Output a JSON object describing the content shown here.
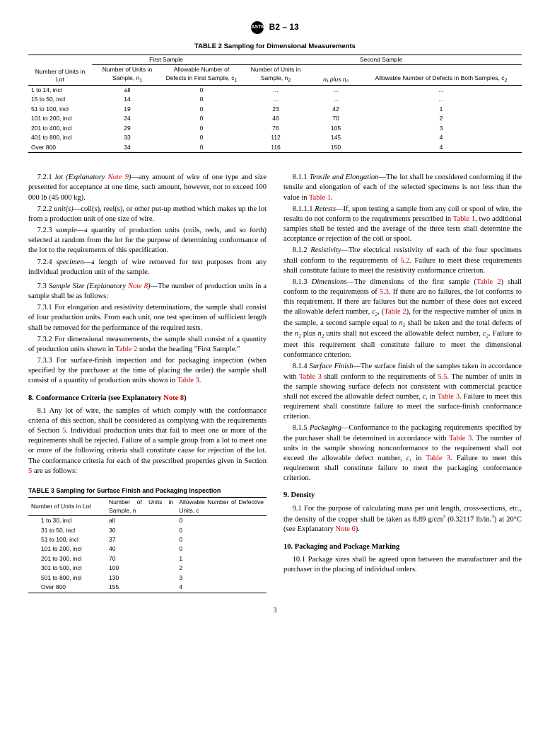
{
  "header": {
    "designation": "B2 – 13"
  },
  "table2": {
    "title": "TABLE 2 Sampling for Dimensional Measurements",
    "group1": "First Sample",
    "group2": "Second Sample",
    "cols": {
      "lot": "Number of Units in Lot",
      "n1": "Number of Units in Sample, n",
      "c1": "Allowable Number of Defects in First Sample, c",
      "n2": "Number of Units in Sample, n",
      "n1n2": "n₁ plus n₂",
      "c2": "Allowable Number of Defects in Both Samples, c"
    },
    "rows": [
      {
        "lot": "1 to 14, incl",
        "n1": "all",
        "c1": "0",
        "n2": "...",
        "n1n2": "...",
        "c2": "..."
      },
      {
        "lot": "15 to 50, incl",
        "n1": "14",
        "c1": "0",
        "n2": "...",
        "n1n2": "...",
        "c2": "..."
      },
      {
        "lot": "51 to 100, incl",
        "n1": "19",
        "c1": "0",
        "n2": "23",
        "n1n2": "42",
        "c2": "1"
      },
      {
        "lot": "101 to 200, incl",
        "n1": "24",
        "c1": "0",
        "n2": "46",
        "n1n2": "70",
        "c2": "2"
      },
      {
        "lot": "201 to 400, incl",
        "n1": "29",
        "c1": "0",
        "n2": "76",
        "n1n2": "105",
        "c2": "3"
      },
      {
        "lot": "401 to 800, incl",
        "n1": "33",
        "c1": "0",
        "n2": "112",
        "n1n2": "145",
        "c2": "4"
      },
      {
        "lot": "Over 800",
        "n1": "34",
        "c1": "0",
        "n2": "116",
        "n1n2": "150",
        "c2": "4"
      }
    ]
  },
  "body": {
    "p721a": "7.2.1 ",
    "p721b": "lot (Explanatory ",
    "p721c": "Note 9",
    "p721d": ")",
    "p721e": "—any amount of wire of one type and size presented for acceptance at one time, such amount, however, not to exceed 100 000 lb (45 000 kg).",
    "p722a": "7.2.2 ",
    "p722b": "unit(s)",
    "p722c": "—coil(s), reel(s), or other put-up method which makes up the lot from a production unit of one size of wire.",
    "p723a": "7.2.3 ",
    "p723b": "sample",
    "p723c": "—a quantity of production units (coils, reels, and so forth) selected at random from the lot for the purpose of determining conformance of the lot to the requirements of this specification.",
    "p724a": "7.2.4 ",
    "p724b": "specimen",
    "p724c": "—a length of wire removed for test purposes from any individual production unit of the sample.",
    "p73a": "7.3 ",
    "p73b": "Sample Size (Explanatory ",
    "p73c": "Note 8",
    "p73d": ")",
    "p73e": "—The number of production units in a sample shall be as follows:",
    "p731": "7.3.1 For elongation and resistivity determinations, the sample shall consist of four production units. From each unit, one test specimen of sufficient length shall be removed for the performance of the required tests.",
    "p732a": "7.3.2 For dimensional measurements, the sample shall consist of a quantity of production units shown in ",
    "p732b": "Table 2",
    "p732c": " under the heading \"First Sample.\"",
    "p733a": "7.3.3 For surface-finish inspection and for packaging inspection (when specified by the purchaser at the time of placing the order) the sample shall consist of a quantity of production units shown in ",
    "p733b": "Table 3",
    "p733c": ".",
    "s8title": "8.  Conformance Criteria (see Explanatory ",
    "s8titleb": "Note 8",
    "s8titlec": ")",
    "p81a": "8.1 Any lot of wire, the samples of which comply with the conformance criteria of this section, shall be considered as complying with the requirements of Section ",
    "p81b": "5",
    "p81c": ". Individual production units that fail to meet one or more of the requirements shall be rejected. Failure of a sample group from a lot to meet one or more of the following criteria shall constitute cause for rejection of the lot. The conformance criteria for each of the prescribed properties given in Section ",
    "p81d": "5",
    "p81e": " are as follows:",
    "p811a": "8.1.1 ",
    "p811b": "Tensile and Elongation",
    "p811c": "—The lot shall be considered conforming if the tensile and elongation of each of the selected specimens is not less than the value in ",
    "p811d": "Table 1",
    "p811e": ".",
    "p8111a": "8.1.1.1 ",
    "p8111b": "Retests",
    "p8111c": "—If, upon testing a sample from any coil or spool of wire, the results do not conform to the requirements prescribed in ",
    "p8111d": "Table 1",
    "p8111e": ", two additional samples shall be tested and the average of the three tests shall determine the acceptance or rejection of the coil or spool.",
    "p812a": "8.1.2 ",
    "p812b": "Resistivity",
    "p812c": "—The electrical resistivity of each of the four specimens shall conform to the requirements of ",
    "p812d": "5.2",
    "p812e": ". Failure to meet these requirements shall constitute failure to meet the resistivity conformance criterion.",
    "p813a": "8.1.3 ",
    "p813b": "Dimensions",
    "p813c": "—The dimensions of the first sample (",
    "p813d": "Table 2",
    "p813e": ") shall conform to the requirements of ",
    "p813f": "5.3",
    "p813g": ". If there are no failures, the lot conforms to this requirement. If there are failures but the number of these does not exceed the allowable defect number, ",
    "p813h": "c",
    "p813i": "2",
    "p813j": ", (",
    "p813k": "Table 2",
    "p813l": "), for the respective number of units in the sample, a second sample equal to ",
    "p813m": "n",
    "p813n": "2",
    "p813o": " shall be taken and the total defects of the ",
    "p813p": "n",
    "p813q": "1",
    "p813r": " plus ",
    "p813s": "n",
    "p813t": "2",
    "p813u": " units shall not exceed the allowable defect number, ",
    "p813v": "c",
    "p813w": "2",
    "p813x": ". Failure to meet this requirement shall constitute failure to meet the dimensional conformance criterion.",
    "p814a": "8.1.4 ",
    "p814b": "Surface Finish",
    "p814c": "—The surface finish of the samples taken in accordance with ",
    "p814d": "Table 3",
    "p814e": " shall conform to the requirements of ",
    "p814f": "5.5",
    "p814g": ". The number of units in the sample showing surface defects not consistent with commercial practice shall not exceed the allowable defect number, ",
    "p814h": "c",
    "p814i": ", in ",
    "p814j": "Table 3",
    "p814k": ". Failure to meet this requirement shall constitute failure to meet the surface-finish conformance criterion.",
    "p815a": "8.1.5 ",
    "p815b": "Packaging",
    "p815c": "—Conformance to the packaging requirements specified by the purchaser shall be determined in accordance with ",
    "p815d": "Table 3",
    "p815e": ". The number of units in the sample showing nonconformance to the requirement shall not exceed the allowable defect number, ",
    "p815f": "c",
    "p815g": ", in ",
    "p815h": "Table 3",
    "p815i": ". Failure to meet this requirement shall constitute failure to meet the packaging conformance criterion.",
    "s9title": "9.  Density",
    "p91a": "9.1 For the purpose of calculating mass per unit length, cross-sections, etc., the density of the copper shall be taken as 8.89 g/cm",
    "p91b": "3",
    "p91c": " (0.32117 lb/in.",
    "p91d": "3",
    "p91e": ") at 20°C (see Explanatory ",
    "p91f": "Note 6",
    "p91g": ").",
    "s10title": "10.  Packaging and Package Marking",
    "p101": "10.1 Package sizes shall be agreed upon between the manufacturer and the purchaser in the placing of individual orders."
  },
  "table3": {
    "title": "TABLE 3 Sampling for Surface Finish and Packaging Inspection",
    "cols": {
      "lot": "Number of Units in Lot",
      "n": "Number of Units in Sample, n",
      "c": "Allowable Number of Defective Units, c"
    },
    "rows": [
      {
        "lot": "1 to 30, incl",
        "n": "all",
        "c": "0"
      },
      {
        "lot": "31 to 50, incl",
        "n": "30",
        "c": "0"
      },
      {
        "lot": "51 to 100, incl",
        "n": "37",
        "c": "0"
      },
      {
        "lot": "101 to 200, incl",
        "n": "40",
        "c": "0"
      },
      {
        "lot": "201 to 300, incl",
        "n": "70",
        "c": "1"
      },
      {
        "lot": "301 to 500, incl",
        "n": "100",
        "c": "2"
      },
      {
        "lot": "501 to 800, incl",
        "n": "130",
        "c": "3"
      },
      {
        "lot": "Over 800",
        "n": "155",
        "c": "4"
      }
    ]
  },
  "page": "3"
}
